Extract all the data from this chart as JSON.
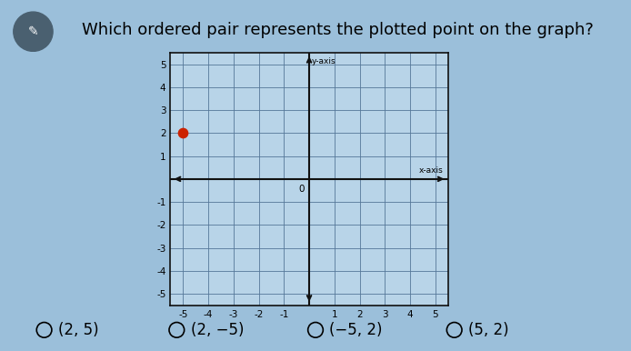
{
  "title": "Which ordered pair represents the plotted point on the graph?",
  "title_fontsize": 13,
  "bg_color": "#9bbfda",
  "graph_bg_color": "#b8d4e8",
  "point_x": -5,
  "point_y": 2,
  "point_color": "#cc2200",
  "point_size": 55,
  "xlim": [
    -5.5,
    5.5
  ],
  "ylim": [
    -5.5,
    5.5
  ],
  "x_ticks": [
    -5,
    -4,
    -3,
    -2,
    -1,
    0,
    1,
    2,
    3,
    4,
    5
  ],
  "y_ticks": [
    -5,
    -4,
    -3,
    -2,
    -1,
    0,
    1,
    2,
    3,
    4,
    5
  ],
  "grid_color": "#557799",
  "axis_color": "#111111",
  "tick_fontsize": 7.5,
  "options": [
    "(2, 5)",
    "(2, −5)",
    "(−5, 2)",
    "(5, 2)"
  ],
  "options_fontsize": 12,
  "x_axis_label": "x-axis",
  "y_axis_label": "y-axis",
  "icon_color": "#556677",
  "icon_check_color": "#ffffff"
}
